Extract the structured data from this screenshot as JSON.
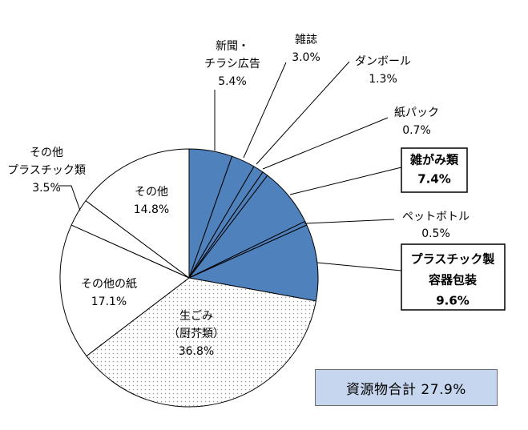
{
  "chart_data": {
    "type": "pie",
    "slices": [
      {
        "name": "新聞・チラシ広告",
        "lines": [
          "新聞・",
          "チラシ広告"
        ],
        "value": 5.4,
        "label": "5.4%",
        "resource": true
      },
      {
        "name": "雑誌",
        "lines": [
          "雑誌"
        ],
        "value": 3.0,
        "label": "3.0%",
        "resource": true
      },
      {
        "name": "ダンボール",
        "lines": [
          "ダンボール"
        ],
        "value": 1.3,
        "label": "1.3%",
        "resource": true
      },
      {
        "name": "紙パック",
        "lines": [
          "紙パック"
        ],
        "value": 0.7,
        "label": "0.7%",
        "resource": true
      },
      {
        "name": "雑がみ類",
        "lines": [
          "雑がみ類"
        ],
        "value": 7.4,
        "label": "7.4%",
        "resource": true,
        "highlight": true
      },
      {
        "name": "ペットボトル",
        "lines": [
          "ペットボトル"
        ],
        "value": 0.5,
        "label": "0.5%",
        "resource": true
      },
      {
        "name": "プラスチック製容器包装",
        "lines": [
          "プラスチック製",
          "容器包装"
        ],
        "value": 9.6,
        "label": "9.6%",
        "resource": true,
        "highlight": true
      },
      {
        "name": "生ごみ（厨芥類）",
        "lines": [
          "生ごみ",
          "（厨芥類）"
        ],
        "value": 36.8,
        "label": "36.8%",
        "resource": false,
        "dotted": true
      },
      {
        "name": "その他の紙",
        "lines": [
          "その他の紙"
        ],
        "value": 17.1,
        "label": "17.1%",
        "resource": false
      },
      {
        "name": "その他プラスチック類",
        "lines": [
          "その他",
          "プラスチック類"
        ],
        "value": 3.5,
        "label": "3.5%",
        "resource": false
      },
      {
        "name": "その他",
        "lines": [
          "その他"
        ],
        "value": 14.8,
        "label": "14.8%",
        "resource": false
      }
    ],
    "start_angle_deg": 0,
    "direction": "clockwise",
    "total_label": "資源物合計 27.9%"
  },
  "colors": {
    "resource_fill": "#4f81bd",
    "other_fill": "#ffffff",
    "outline": "#000000",
    "dot_color": "#9a9a9a",
    "total_box_fill": "#c6d6ee"
  }
}
